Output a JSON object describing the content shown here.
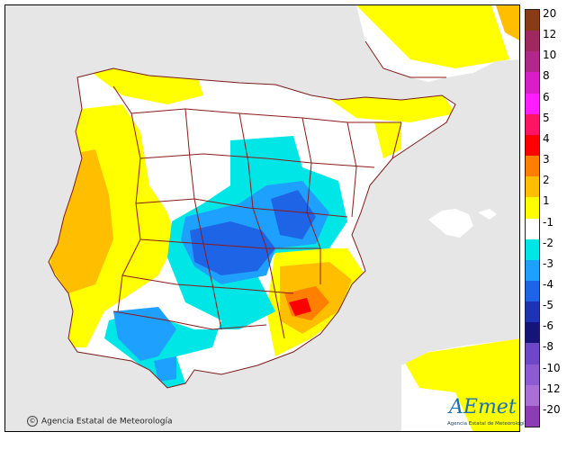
{
  "map": {
    "copyright": "Agencia Estatal de Meteorología",
    "logo_text": "AEmet",
    "logo_subtitle": "Agencia Estatal de Meteorología"
  },
  "legend": {
    "labels": [
      "20",
      "12",
      "10",
      "8",
      "6",
      "5",
      "4",
      "3",
      "2",
      "1",
      "-1",
      "-2",
      "-3",
      "-4",
      "-5",
      "-6",
      "-8",
      "-10",
      "-12",
      "-20"
    ],
    "colors": [
      "#8b3a16",
      "#a0285e",
      "#b0288a",
      "#d81ec8",
      "#ff1eff",
      "#ff1464",
      "#ff0000",
      "#ff7f00",
      "#ffbf00",
      "#ffff00",
      "#ffffff",
      "#00e6e6",
      "#1ea0ff",
      "#1e64e6",
      "#1e32b4",
      "#14147a",
      "#6e46c8",
      "#8c5ad2",
      "#aa6ed7",
      "#8c3cb4"
    ]
  },
  "colors": {
    "sea": "#e6e6e6",
    "land": "#ffffff",
    "border": "#8b1a1a"
  }
}
